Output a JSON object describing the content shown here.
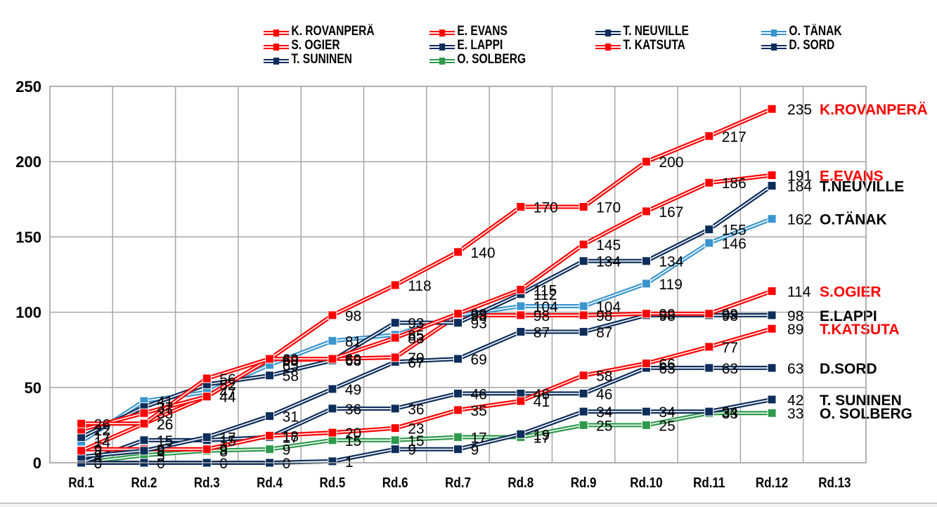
{
  "chart_data": {
    "type": "line",
    "title": "",
    "xlabel": "",
    "ylabel": "",
    "ylim": [
      0,
      250
    ],
    "yticks": [
      0,
      50,
      100,
      150,
      200,
      250
    ],
    "grid": true,
    "legend_position": "top",
    "categories": [
      "Rd.1",
      "Rd.2",
      "Rd.3",
      "Rd.4",
      "Rd.5",
      "Rd.6",
      "Rd.7",
      "Rd.8",
      "Rd.9",
      "Rd.10",
      "Rd.11",
      "Rd.12",
      "Rd.13"
    ],
    "series": [
      {
        "name": "K. ROVANPERÄ",
        "end_label": "K.ROVANPERÄ",
        "color": "#ff0000",
        "label_color": "#ff0000",
        "values": [
          26,
          26,
          56,
          69,
          98,
          118,
          140,
          170,
          170,
          200,
          217,
          235
        ]
      },
      {
        "name": "E. EVANS",
        "end_label": "E.EVANS",
        "color": "#ff0000",
        "label_color": "#ff0000",
        "values": [
          22,
          33,
          44,
          69,
          69,
          83,
          99,
          115,
          145,
          167,
          186,
          191
        ]
      },
      {
        "name": "T. NEUVILLE",
        "end_label": "T.NEUVILLE",
        "color": "#0d2d5a",
        "label_color": "#000000",
        "values": [
          17,
          37,
          52,
          58,
          68,
          93,
          93,
          112,
          134,
          134,
          155,
          184
        ]
      },
      {
        "name": "O. TÄNAK",
        "end_label": "O.TÄNAK",
        "color": "#3a95cf",
        "label_color": "#000000",
        "values": [
          14,
          41,
          47,
          65,
          81,
          85,
          98,
          104,
          104,
          119,
          146,
          162
        ]
      },
      {
        "name": "S. OGIER",
        "end_label": "S.OGIER",
        "color": "#ff0000",
        "label_color": "#ff0000",
        "values": [
          8,
          26,
          44,
          68,
          69,
          70,
          98,
          98,
          98,
          99,
          99,
          114
        ]
      },
      {
        "name": "E. LAPPI",
        "end_label": "E.LAPPI",
        "color": "#0d2d5a",
        "label_color": "#000000",
        "values": [
          4,
          8,
          17,
          31,
          49,
          67,
          69,
          87,
          87,
          98,
          98,
          98
        ]
      },
      {
        "name": "T. KATSUTA",
        "end_label": "T.KATSUTA",
        "color": "#ff0000",
        "label_color": "#ff0000",
        "values": [
          9,
          9,
          9,
          18,
          20,
          23,
          35,
          41,
          58,
          66,
          77,
          89
        ]
      },
      {
        "name": "D. SORD",
        "end_label": "D.SORD",
        "color": "#0d2d5a",
        "label_color": "#000000",
        "values": [
          0,
          15,
          15,
          17,
          36,
          36,
          46,
          46,
          46,
          63,
          63,
          63
        ]
      },
      {
        "name": "T. SUNINEN",
        "end_label": "T. SUNINEN",
        "color": "#0d2d5a",
        "label_color": "#000000",
        "values": [
          0,
          0,
          0,
          0,
          1,
          9,
          9,
          19,
          34,
          34,
          34,
          42
        ]
      },
      {
        "name": "O. SOLBERG",
        "end_label": "O. SOLBERG",
        "color": "#2e9a4c",
        "label_color": "#000000",
        "values": [
          0,
          5,
          8,
          9,
          15,
          15,
          17,
          17,
          25,
          25,
          33,
          33
        ]
      }
    ]
  },
  "legend": {
    "items": [
      {
        "label": "K. ROVANPERÄ",
        "color": "#ff0000"
      },
      {
        "label": "E. EVANS",
        "color": "#ff0000"
      },
      {
        "label": "T. NEUVILLE",
        "color": "#0d2d5a"
      },
      {
        "label": "O. TÄNAK",
        "color": "#3a95cf"
      },
      {
        "label": "S. OGIER",
        "color": "#ff0000"
      },
      {
        "label": "E. LAPPI",
        "color": "#0d2d5a"
      },
      {
        "label": "T. KATSUTA",
        "color": "#ff0000"
      },
      {
        "label": "D. SORD",
        "color": "#0d2d5a"
      },
      {
        "label": "T. SUNINEN",
        "color": "#0d2d5a"
      },
      {
        "label": "O. SOLBERG",
        "color": "#2e9a4c"
      }
    ]
  }
}
